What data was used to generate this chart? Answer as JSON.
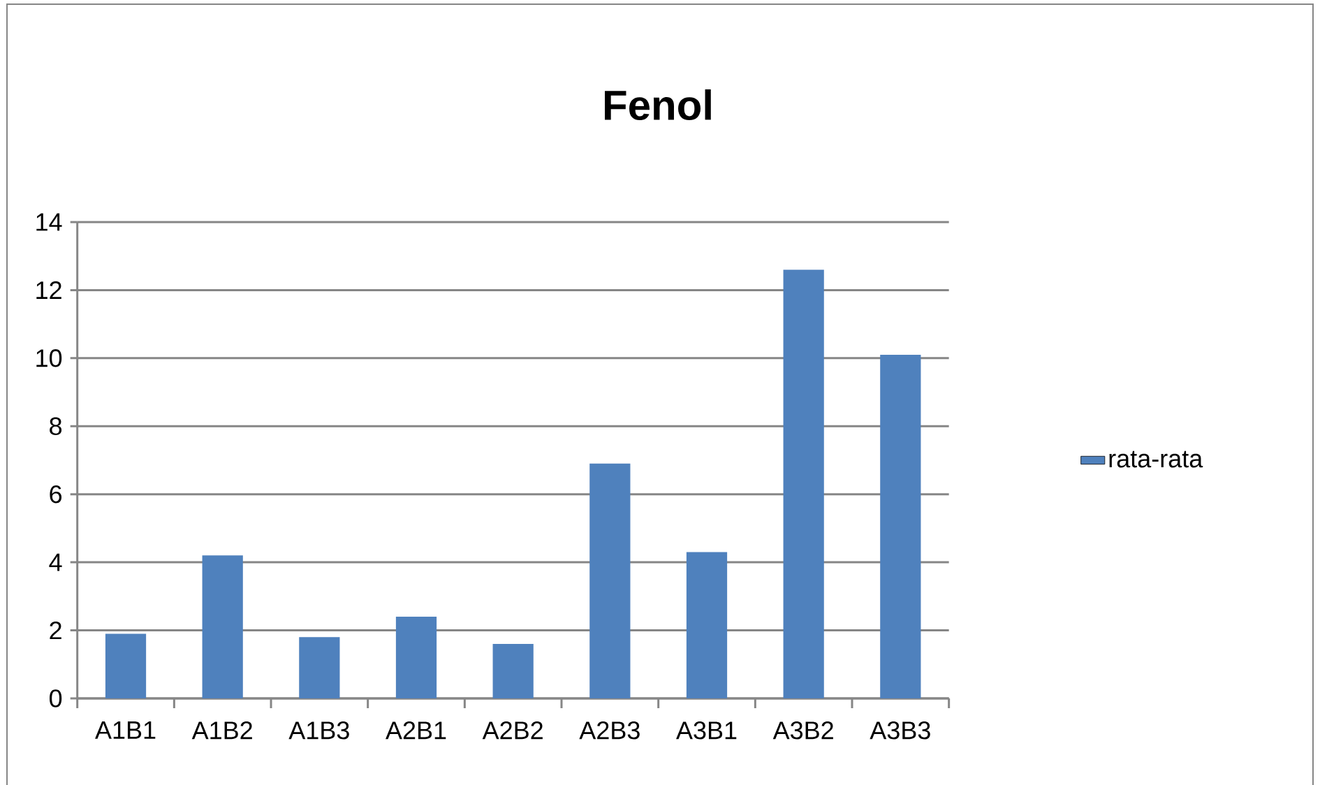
{
  "chart_data": {
    "type": "bar",
    "title": "Fenol",
    "categories": [
      "A1B1",
      "A1B2",
      "A1B3",
      "A2B1",
      "A2B2",
      "A2B3",
      "A3B1",
      "A3B2",
      "A3B3"
    ],
    "series": [
      {
        "name": "rata-rata",
        "color": "#4f81bd",
        "values": [
          1.9,
          4.2,
          1.8,
          2.4,
          1.6,
          6.9,
          4.3,
          12.6,
          10.1
        ]
      }
    ],
    "ylim": [
      0,
      14
    ],
    "yticks": [
      0,
      2,
      4,
      6,
      8,
      10,
      12,
      14
    ],
    "grid": "y",
    "legend": "right"
  }
}
